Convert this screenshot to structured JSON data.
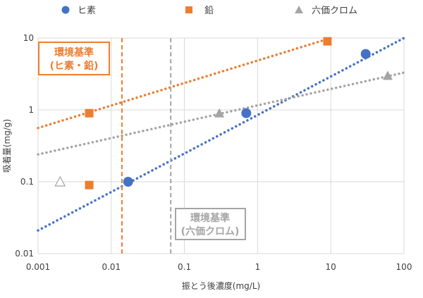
{
  "chart_data": {
    "type": "scatter",
    "xlabel": "振とう後濃度(mg/L)",
    "ylabel": "吸着量(mg/g)",
    "x_scale": "log",
    "y_scale": "log",
    "xlim": [
      0.001,
      100
    ],
    "ylim": [
      0.01,
      10
    ],
    "x_ticks": [
      "0.001",
      "0.01",
      "0.1",
      "1",
      "10",
      "100"
    ],
    "y_ticks": [
      "0.01",
      "0.1",
      "1",
      "10"
    ],
    "legend": {
      "position": "top"
    },
    "series": [
      {
        "name": "ヒ素",
        "color": "#4472c4",
        "marker": "circle",
        "points": [
          [
            0.017,
            0.1
          ],
          [
            0.7,
            0.9
          ],
          [
            30,
            6
          ]
        ],
        "trend": {
          "x_from": 0.001,
          "y_from": 0.021,
          "x_to": 100,
          "y_to": 10
        }
      },
      {
        "name": "鉛",
        "color": "#ed7d31",
        "marker": "square",
        "points": [
          [
            0.005,
            0.09
          ],
          [
            0.005,
            0.9
          ],
          [
            9,
            9
          ]
        ],
        "trend": {
          "x_from": 0.001,
          "y_from": 0.56,
          "x_to": 10,
          "y_to": 10
        }
      },
      {
        "name": "六価クロム",
        "color": "#a5a5a5",
        "marker": "triangle",
        "points": [
          [
            0.3,
            0.9
          ],
          [
            60,
            3
          ]
        ],
        "hollow_points": [
          [
            0.002,
            0.1
          ]
        ],
        "trend": {
          "x_from": 0.001,
          "y_from": 0.24,
          "x_to": 100,
          "y_to": 3.3
        }
      }
    ],
    "reference_lines": [
      {
        "label_line1": "環境基準",
        "label_line2": "(ヒ素・鉛)",
        "x": 0.014,
        "color": "#ed7d31"
      },
      {
        "label_line1": "環境基準",
        "label_line2": "(六価クロム)",
        "x": 0.065,
        "color": "#a5a5a5"
      }
    ]
  }
}
